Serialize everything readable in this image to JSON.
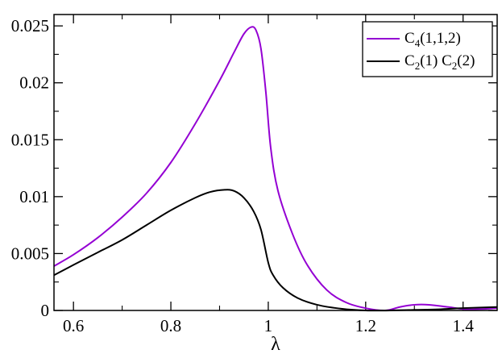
{
  "chart_data": {
    "type": "line",
    "title": "",
    "xlabel": "λ",
    "ylabel": "",
    "xlim": [
      0.56,
      1.47
    ],
    "ylim": [
      0,
      0.026
    ],
    "grid": false,
    "legend_position": "top-right",
    "x_ticks": [
      {
        "value": 0.6,
        "label": "0.6"
      },
      {
        "value": 0.8,
        "label": "0.8"
      },
      {
        "value": 1.0,
        "label": "1"
      },
      {
        "value": 1.2,
        "label": "1.2"
      },
      {
        "value": 1.4,
        "label": "1.4"
      }
    ],
    "y_ticks": [
      {
        "value": 0,
        "label": "0"
      },
      {
        "value": 0.005,
        "label": "0.005"
      },
      {
        "value": 0.01,
        "label": "0.01"
      },
      {
        "value": 0.015,
        "label": "0.015"
      },
      {
        "value": 0.02,
        "label": "0.02"
      },
      {
        "value": 0.025,
        "label": "0.025"
      }
    ],
    "series": [
      {
        "name": "C4(1,1,2)",
        "legend": {
          "base": "C",
          "sub": "4",
          "rest": "(1,1,2)"
        },
        "color": "#9400D3",
        "x": [
          0.56,
          0.6,
          0.65,
          0.7,
          0.75,
          0.8,
          0.85,
          0.9,
          0.93,
          0.95,
          0.965,
          0.975,
          0.985,
          0.995,
          1.005,
          1.02,
          1.05,
          1.08,
          1.12,
          1.16,
          1.2,
          1.24,
          1.27,
          1.3,
          1.33,
          1.37,
          1.41,
          1.47
        ],
        "y": [
          0.0039,
          0.0049,
          0.0064,
          0.0082,
          0.0103,
          0.013,
          0.0164,
          0.0202,
          0.0227,
          0.0243,
          0.0249,
          0.0246,
          0.023,
          0.0192,
          0.0143,
          0.0105,
          0.0067,
          0.004,
          0.0018,
          0.0007,
          0.0002,
          0.0,
          0.0003,
          0.0005,
          0.0005,
          0.0003,
          0.0001,
          0.0002
        ]
      },
      {
        "name": "C2(1) C2(2)",
        "legend": {
          "base": "C",
          "sub": "2",
          "rest": "(1) C",
          "sub2": "2",
          "rest2": "(2)"
        },
        "color": "#000000",
        "x": [
          0.56,
          0.6,
          0.65,
          0.7,
          0.75,
          0.8,
          0.85,
          0.88,
          0.91,
          0.93,
          0.95,
          0.97,
          0.985,
          1.0,
          1.01,
          1.03,
          1.06,
          1.1,
          1.15,
          1.2,
          1.25,
          1.3,
          1.35,
          1.4,
          1.47
        ],
        "y": [
          0.0031,
          0.004,
          0.0051,
          0.0062,
          0.0075,
          0.0088,
          0.0099,
          0.0104,
          0.0106,
          0.0105,
          0.0099,
          0.0087,
          0.0071,
          0.0042,
          0.0031,
          0.002,
          0.0011,
          0.0005,
          0.00015,
          0.0,
          0.0,
          5e-05,
          0.0001,
          0.0002,
          0.0003
        ]
      }
    ]
  }
}
